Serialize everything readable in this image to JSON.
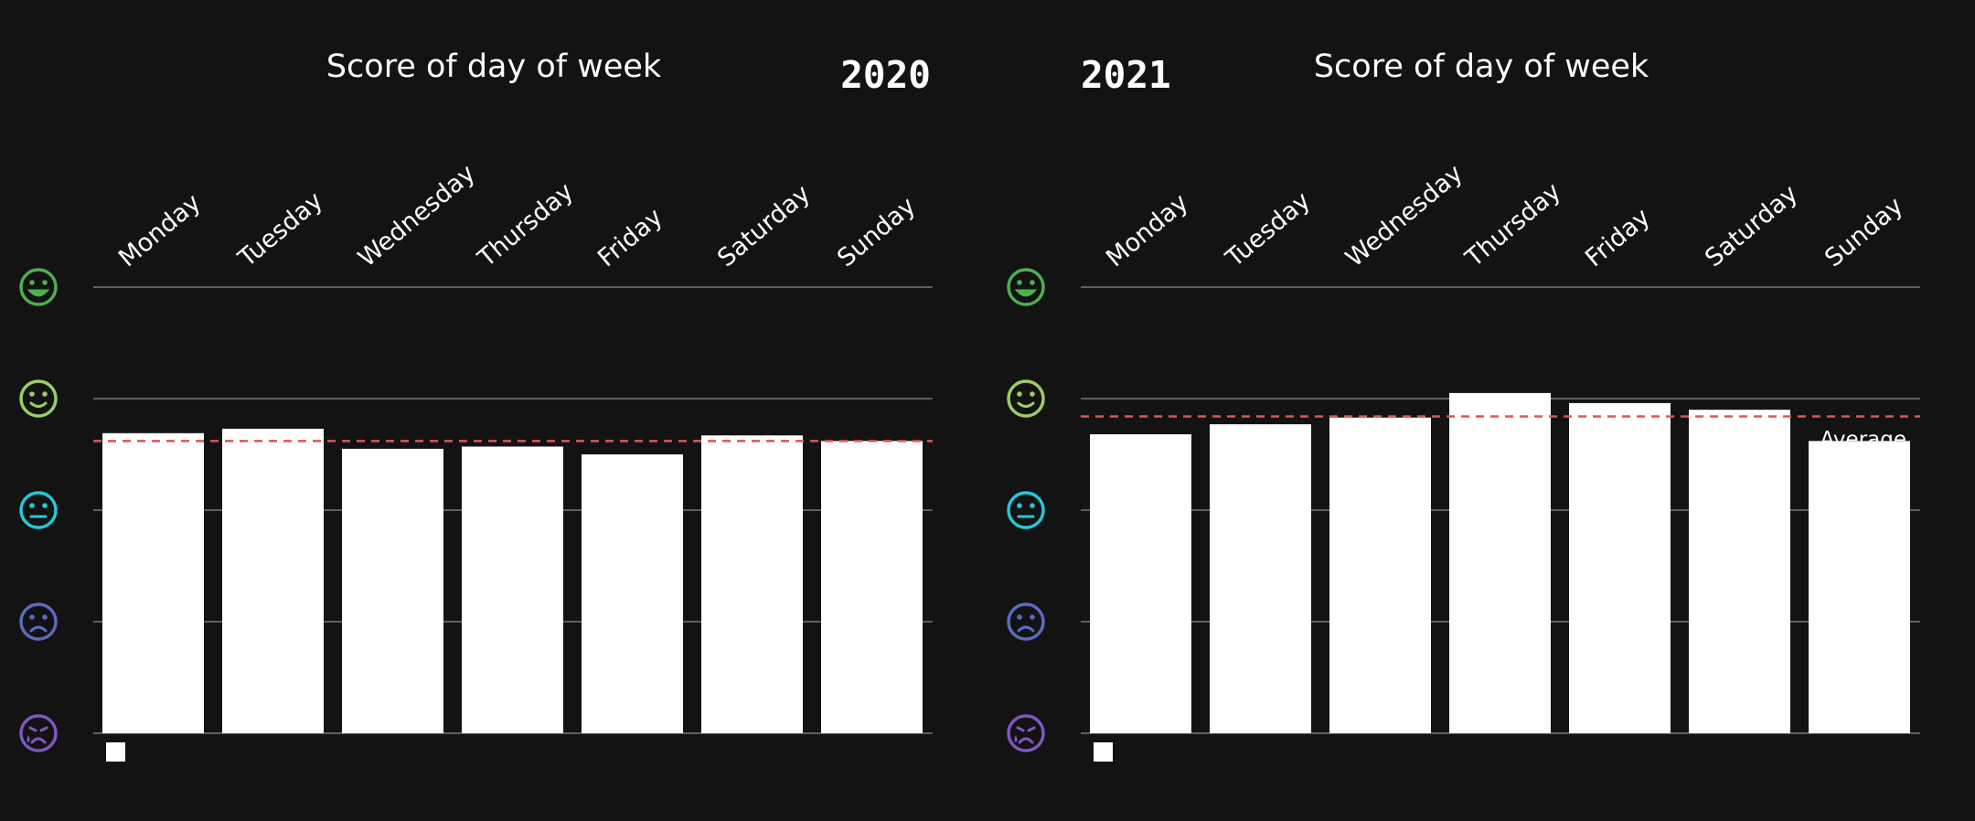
{
  "colors": {
    "background": "#131313",
    "bar": "#ffffff",
    "grid": "#8a8a8a",
    "average_line": "#e05555",
    "mood_icons": [
      "#4caf50",
      "#9ccc65",
      "#26c6da",
      "#5c6bc0",
      "#7e57c2"
    ]
  },
  "mood_icons": [
    "rad-face-icon",
    "good-face-icon",
    "meh-face-icon",
    "bad-face-icon",
    "awful-face-icon"
  ],
  "chart_data": [
    {
      "type": "bar",
      "title": "Score of day of week",
      "year": "2020",
      "categories": [
        "Monday",
        "Tuesday",
        "Wednesday",
        "Thursday",
        "Friday",
        "Saturday",
        "Sunday"
      ],
      "values": [
        2.69,
        2.73,
        2.55,
        2.57,
        2.5,
        2.67,
        2.62
      ],
      "average": 2.62,
      "ylim": [
        0,
        4
      ],
      "grid": true,
      "legend_swatch": "bottom-left"
    },
    {
      "type": "bar",
      "title": "Score of day of week",
      "year": "2021",
      "annotation": "Average",
      "categories": [
        "Monday",
        "Tuesday",
        "Wednesday",
        "Thursday",
        "Friday",
        "Saturday",
        "Sunday"
      ],
      "values": [
        2.68,
        2.77,
        2.83,
        3.05,
        2.96,
        2.9,
        2.62
      ],
      "average": 2.84,
      "ylim": [
        0,
        4
      ],
      "grid": true,
      "legend_swatch": "bottom-left"
    }
  ]
}
